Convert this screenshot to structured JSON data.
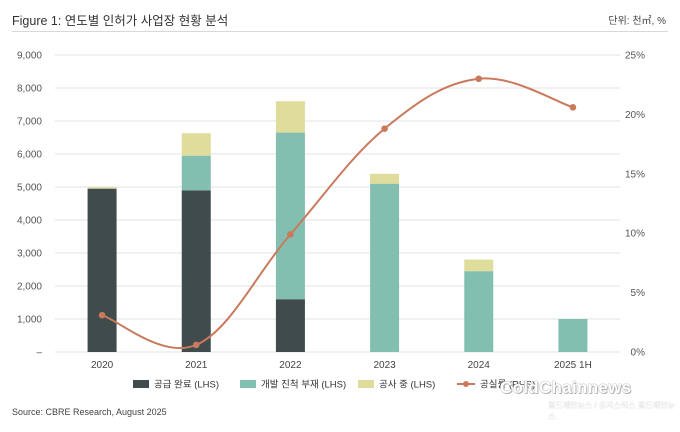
{
  "header": {
    "title": "Figure 1: 연도별 인허가 사업장 현황 분석",
    "unit": "단위: 천㎡, %"
  },
  "footer": {
    "source": "Source: CBRE Research, August 2025"
  },
  "watermark": {
    "brand": "ColdChainnews",
    "sub": "콜드체인뉴스 / 로지스틱스 콜드체인뉴스"
  },
  "colors": {
    "completed": "#3f4b4c",
    "not_started": "#83bfb0",
    "under_construction": "#e0dc9b",
    "vacancy": "#c97a5c"
  },
  "chart_data": {
    "type": "bar",
    "stacked": true,
    "categories": [
      "2020",
      "2021",
      "2022",
      "2023",
      "2024",
      "2025 1H"
    ],
    "series": [
      {
        "name": "공급 완료 (LHS)",
        "axis": "left",
        "type": "bar",
        "values": [
          4950,
          4900,
          1600,
          0,
          0,
          0
        ]
      },
      {
        "name": "개발 진척 부재 (LHS)",
        "axis": "left",
        "type": "bar",
        "values": [
          0,
          1050,
          5050,
          5100,
          2450,
          1000
        ]
      },
      {
        "name": "공사 중 (LHS)",
        "axis": "left",
        "type": "bar",
        "values": [
          40,
          680,
          950,
          300,
          350,
          0
        ]
      },
      {
        "name": "공실률 (RHS)",
        "axis": "right",
        "type": "line",
        "values": [
          3.1,
          0.6,
          9.9,
          18.8,
          23.0,
          20.6
        ]
      }
    ],
    "y_left": {
      "ylim": [
        0,
        9000
      ],
      "ticks": [
        "–",
        "1,000",
        "2,000",
        "3,000",
        "4,000",
        "5,000",
        "6,000",
        "7,000",
        "8,000",
        "9,000"
      ]
    },
    "y_right": {
      "ylim": [
        0,
        25
      ],
      "ticks": [
        "0%",
        "5%",
        "10%",
        "15%",
        "20%",
        "25%"
      ]
    },
    "grid": true,
    "legend_position": "bottom"
  }
}
